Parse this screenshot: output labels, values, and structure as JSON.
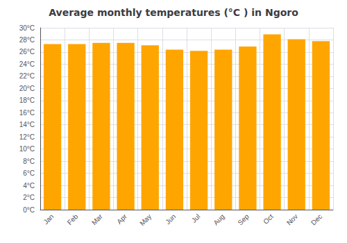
{
  "chart_data": {
    "type": "bar",
    "title": "Average monthly temperatures (°C ) in Ngoro",
    "categories": [
      "Jan",
      "Feb",
      "Mar",
      "Apr",
      "May",
      "Jun",
      "Jul",
      "Aug",
      "Sep",
      "Oct",
      "Nov",
      "Dec"
    ],
    "values": [
      27.3,
      27.3,
      27.5,
      27.5,
      27.1,
      26.4,
      26.2,
      26.4,
      26.9,
      28.9,
      28.1,
      27.8
    ],
    "color": "#FFA500",
    "ylim": [
      0,
      30
    ],
    "yticks": [
      {
        "value": 0,
        "label": "0°C"
      },
      {
        "value": 2,
        "label": "2°C"
      },
      {
        "value": 4,
        "label": "4°C"
      },
      {
        "value": 6,
        "label": "6°C"
      },
      {
        "value": 8,
        "label": "8°C"
      },
      {
        "value": 10,
        "label": "10°C"
      },
      {
        "value": 12,
        "label": "12°C"
      },
      {
        "value": 14,
        "label": "14°C"
      },
      {
        "value": 16,
        "label": "16°C"
      },
      {
        "value": 18,
        "label": "18°C"
      },
      {
        "value": 20,
        "label": "20°C"
      },
      {
        "value": 22,
        "label": "22°C"
      },
      {
        "value": 24,
        "label": "24°C"
      },
      {
        "value": 26,
        "label": "26°C"
      },
      {
        "value": 28,
        "label": "28°C"
      },
      {
        "value": 30,
        "label": "30°C"
      }
    ],
    "grid": true
  }
}
